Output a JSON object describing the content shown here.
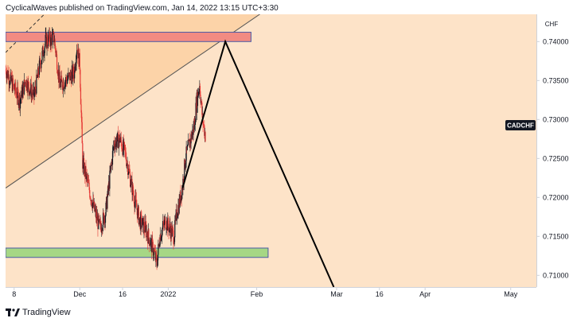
{
  "header": {
    "publisher_line": "CyclicalWaves published on TradingView.com, Jan 14, 2022 13:15 UTC+3:30"
  },
  "footer": {
    "logo_mark": "17",
    "logo_text": "TradingView"
  },
  "colors": {
    "background_zone": "#fde3c8",
    "channel_zone": "#fcd3a8",
    "resistance_box": "#f28b82",
    "support_box": "#a6d785",
    "candle_up": "#131722",
    "candle_down": "#e53935",
    "projection_line": "#000000",
    "axis_text": "#131722"
  },
  "chart_data": {
    "type": "candlestick",
    "symbol": "CADCHF",
    "currency": "CHF",
    "x_ticks": [
      "8",
      "Dec",
      "16",
      "2022",
      "Feb",
      "Mar",
      "16",
      "Apr",
      "May"
    ],
    "y_ticks": [
      "0.74000",
      "0.73500",
      "0.73000",
      "0.72500",
      "0.72000",
      "0.71500",
      "0.71000"
    ],
    "ylim": [
      0.7085,
      0.7435
    ],
    "xlim": [
      "2021-11-05",
      "2022-05-10"
    ],
    "price_path": [
      {
        "date": "2021-11-05",
        "price": 0.7365
      },
      {
        "date": "2021-11-08",
        "price": 0.734
      },
      {
        "date": "2021-11-10",
        "price": 0.7325
      },
      {
        "date": "2021-11-12",
        "price": 0.735
      },
      {
        "date": "2021-11-15",
        "price": 0.733
      },
      {
        "date": "2021-11-17",
        "price": 0.737
      },
      {
        "date": "2021-11-19",
        "price": 0.74
      },
      {
        "date": "2021-11-22",
        "price": 0.7405
      },
      {
        "date": "2021-11-24",
        "price": 0.7345
      },
      {
        "date": "2021-11-26",
        "price": 0.735
      },
      {
        "date": "2021-11-29",
        "price": 0.736
      },
      {
        "date": "2021-11-30",
        "price": 0.7395
      },
      {
        "date": "2021-12-01",
        "price": 0.737
      },
      {
        "date": "2021-12-02",
        "price": 0.7245
      },
      {
        "date": "2021-12-03",
        "price": 0.723
      },
      {
        "date": "2021-12-06",
        "price": 0.7185
      },
      {
        "date": "2021-12-08",
        "price": 0.716
      },
      {
        "date": "2021-12-10",
        "price": 0.718
      },
      {
        "date": "2021-12-13",
        "price": 0.727
      },
      {
        "date": "2021-12-15",
        "price": 0.7275
      },
      {
        "date": "2021-12-17",
        "price": 0.7255
      },
      {
        "date": "2021-12-20",
        "price": 0.72
      },
      {
        "date": "2021-12-22",
        "price": 0.717
      },
      {
        "date": "2021-12-24",
        "price": 0.716
      },
      {
        "date": "2021-12-27",
        "price": 0.713
      },
      {
        "date": "2021-12-28",
        "price": 0.7115
      },
      {
        "date": "2021-12-29",
        "price": 0.715
      },
      {
        "date": "2021-12-31",
        "price": 0.717
      },
      {
        "date": "2022-01-03",
        "price": 0.715
      },
      {
        "date": "2022-01-04",
        "price": 0.718
      },
      {
        "date": "2022-01-05",
        "price": 0.7195
      },
      {
        "date": "2022-01-06",
        "price": 0.7215
      },
      {
        "date": "2022-01-07",
        "price": 0.725
      },
      {
        "date": "2022-01-10",
        "price": 0.729
      },
      {
        "date": "2022-01-11",
        "price": 0.7325
      },
      {
        "date": "2022-01-12",
        "price": 0.7345
      },
      {
        "date": "2022-01-13",
        "price": 0.73
      },
      {
        "date": "2022-01-14",
        "price": 0.728
      }
    ],
    "resistance_zone": {
      "from": "2021-11-05",
      "to": "2022-01-30",
      "low": 0.74,
      "high": 0.7412
    },
    "support_zone": {
      "from": "2021-11-05",
      "to": "2022-02-05",
      "low": 0.7123,
      "high": 0.7135
    },
    "channel_line": [
      {
        "date": "2021-11-05",
        "price": 0.7212
      },
      {
        "date": "2022-02-20",
        "price": 0.748
      }
    ],
    "upper_line": [
      {
        "date": "2021-11-05",
        "price": 0.7386
      },
      {
        "date": "2021-12-01",
        "price": 0.748
      }
    ],
    "projection": [
      {
        "date": "2022-01-06",
        "price": 0.7212
      },
      {
        "date": "2022-01-21",
        "price": 0.74
      },
      {
        "date": "2022-02-28",
        "price": 0.7085
      }
    ]
  }
}
